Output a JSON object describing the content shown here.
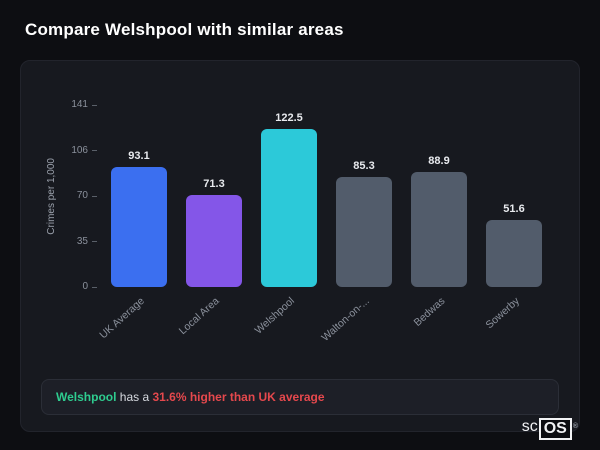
{
  "page": {
    "title": "Compare Welshpool with similar areas"
  },
  "chart_data": {
    "type": "bar",
    "categories": [
      "UK Average",
      "Local Area",
      "Welshpool",
      "Walton-on-...",
      "Bedwas",
      "Sowerby"
    ],
    "values": [
      93.1,
      71.3,
      122.5,
      85.3,
      88.9,
      51.6
    ],
    "value_labels": [
      "93.1",
      "71.3",
      "122.5",
      "85.3",
      "88.9",
      "51.6"
    ],
    "bar_colors": [
      "#3b6ff0",
      "#8456e8",
      "#2cc9d9",
      "#525c6b",
      "#525c6b",
      "#525c6b"
    ],
    "title": "",
    "xlabel": "",
    "ylabel": "Crimes per 1,000",
    "yticks": [
      "141",
      "106",
      "70",
      "35",
      "0"
    ],
    "ylim": [
      0,
      141
    ],
    "grid": false,
    "legend": false
  },
  "note": {
    "area": "Welshpool",
    "middle": " has a ",
    "stat": "31.6% higher than UK average"
  },
  "watermark": {
    "prefix": "sc",
    "boxed": "OS",
    "reg": "®"
  }
}
